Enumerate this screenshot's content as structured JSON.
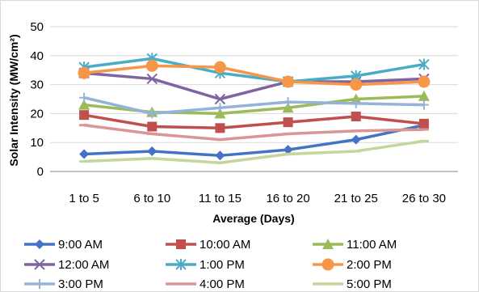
{
  "chart_data": {
    "type": "line",
    "title": "",
    "xlabel": "Average (Days)",
    "ylabel": "Solar Intensity (MW/cm²)",
    "ylim": [
      0,
      50
    ],
    "yticks": [
      0,
      10,
      20,
      30,
      40,
      50
    ],
    "categories": [
      "1 to 5",
      "6 to 10",
      "11 to 15",
      "16 to 20",
      "21 to 25",
      "26 to 30"
    ],
    "grid": true,
    "legend_position": "bottom",
    "series": [
      {
        "name": "9:00 AM",
        "color": "#4472C4",
        "marker": "diamond",
        "values": [
          6,
          7,
          5.5,
          7.5,
          11,
          16
        ]
      },
      {
        "name": "10:00 AM",
        "color": "#C0504D",
        "marker": "square",
        "values": [
          19.5,
          15.5,
          15,
          17,
          19,
          16.5
        ]
      },
      {
        "name": "11:00 AM",
        "color": "#9BBB59",
        "marker": "triangle",
        "values": [
          23,
          20.5,
          20,
          22,
          25,
          26
        ]
      },
      {
        "name": "12:00 AM",
        "color": "#8064A2",
        "marker": "x",
        "values": [
          34,
          32,
          25,
          31,
          31,
          32
        ]
      },
      {
        "name": "1:00 PM",
        "color": "#4BACC6",
        "marker": "star",
        "values": [
          36,
          39,
          34,
          31,
          33,
          37
        ]
      },
      {
        "name": "2:00 PM",
        "color": "#F79646",
        "marker": "circle",
        "values": [
          34,
          36.5,
          36,
          31,
          30,
          31
        ]
      },
      {
        "name": "3:00 PM",
        "color": "#95B3D7",
        "marker": "plus",
        "values": [
          25.5,
          20,
          22,
          24,
          23.5,
          23
        ]
      },
      {
        "name": "4:00 PM",
        "color": "#D99694",
        "marker": "dash",
        "values": [
          16,
          13,
          11,
          13,
          14,
          14.5
        ]
      },
      {
        "name": "5:00 PM",
        "color": "#C3D69B",
        "marker": "dash",
        "values": [
          3.5,
          4.5,
          3,
          6,
          7,
          10.5
        ]
      }
    ]
  }
}
